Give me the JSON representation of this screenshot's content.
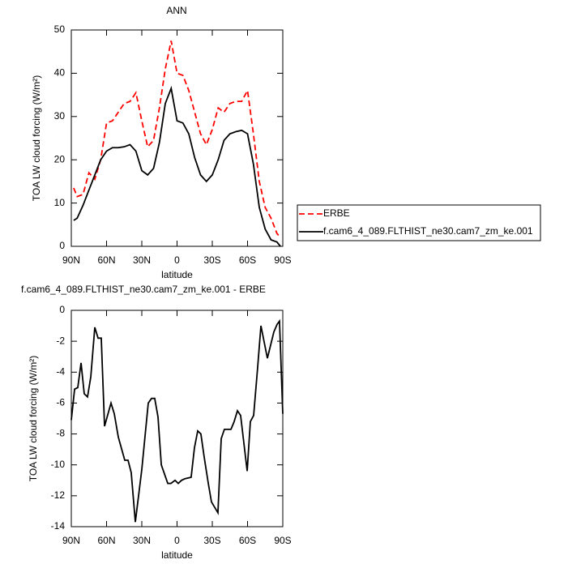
{
  "chart_data": [
    {
      "type": "line",
      "title": "ANN",
      "xlabel": "latitude",
      "ylabel": "TOA LW cloud forcing (W/m²)",
      "x": [
        88,
        85,
        80,
        75,
        70,
        65,
        60,
        55,
        50,
        45,
        40,
        35,
        30,
        25,
        20,
        15,
        10,
        5,
        0,
        -5,
        -10,
        -15,
        -20,
        -25,
        -30,
        -35,
        -40,
        -45,
        -50,
        -55,
        -60,
        -65,
        -70,
        -75,
        -80,
        -85,
        -88
      ],
      "series": [
        {
          "name": "ERBE",
          "color": "#ff0000",
          "dashed": true,
          "values": [
            13.5,
            11.5,
            12,
            17,
            15.5,
            20,
            28.5,
            29,
            31,
            33,
            33.5,
            35.5,
            29,
            23,
            24.5,
            32,
            41,
            47.5,
            40,
            39.5,
            36,
            31,
            26,
            23.5,
            27,
            32,
            31,
            33,
            33.5,
            33.5,
            36,
            26,
            15,
            9,
            6.5,
            3,
            2
          ]
        },
        {
          "name": "f.cam6_4_089.FLTHIST_ne30.cam7_zm_ke.001",
          "color": "#000000",
          "dashed": false,
          "values": [
            6,
            6.5,
            9.5,
            13,
            16.5,
            20,
            22,
            22.8,
            22.8,
            23,
            23.5,
            22,
            17.5,
            16.5,
            18,
            24,
            33,
            36.5,
            29,
            28.5,
            26,
            20.5,
            16.5,
            15,
            16.5,
            20,
            24.5,
            26,
            26.5,
            26.8,
            26,
            19,
            9,
            4,
            1.5,
            1,
            0
          ]
        }
      ],
      "xlim": [
        90,
        -90
      ],
      "ylim": [
        0,
        50
      ],
      "xticks": [
        {
          "value": 90,
          "label": "90N"
        },
        {
          "value": 60,
          "label": "60N"
        },
        {
          "value": 30,
          "label": "30N"
        },
        0,
        {
          "value": -30,
          "label": "30S"
        },
        {
          "value": -60,
          "label": "60S"
        },
        {
          "value": -90,
          "label": "90S"
        }
      ],
      "yticks": [
        0,
        10,
        20,
        30,
        40,
        50
      ],
      "legend": "outside right"
    },
    {
      "type": "line",
      "title": "f.cam6_4_089.FLTHIST_ne30.cam7_zm_ke.001 - ERBE",
      "xlabel": "latitude",
      "ylabel": "TOA LW cloud forcing (W/m²)",
      "x": [
        90,
        87.2,
        84.5,
        81.7,
        79,
        76.2,
        73.4,
        70,
        67.2,
        64.5,
        61.7,
        56.2,
        53.4,
        50,
        44.5,
        41.7,
        39,
        35.5,
        30,
        24.5,
        21.7,
        19,
        16.2,
        13.4,
        7.9,
        5.2,
        1.7,
        -1,
        -3.8,
        -6.6,
        -12,
        -14.8,
        -17.6,
        -20.3,
        -23.1,
        -26.6,
        -29.3,
        -34.8,
        -37.6,
        -40.3,
        -45.9,
        -48.6,
        -51.4,
        -54.1,
        -59.7,
        -62.4,
        -65.2,
        -68.6,
        -71.4,
        -76.9,
        -82.4,
        -85.2,
        -87.2,
        -90
      ],
      "color": "#000000",
      "values": [
        -7.1,
        -5.1,
        -5.0,
        -3.4,
        -5.4,
        -5.6,
        -4.3,
        -1.1,
        -1.8,
        -1.8,
        -7.5,
        -6.0,
        -6.7,
        -8.2,
        -9.7,
        -9.7,
        -10.5,
        -13.7,
        -10.3,
        -6.0,
        -5.7,
        -5.7,
        -6.9,
        -10.0,
        -11.2,
        -11.2,
        -11.0,
        -11.2,
        -11.0,
        -10.9,
        -10.8,
        -8.9,
        -7.8,
        -8.0,
        -9.5,
        -11.2,
        -12.4,
        -13.1,
        -8.3,
        -7.7,
        -7.7,
        -7.2,
        -6.5,
        -6.8,
        -10.4,
        -7.2,
        -6.8,
        -3.7,
        -1.0,
        -3.1,
        -1.4,
        -0.9,
        -0.7,
        -6.7
      ],
      "xlim": [
        90,
        -90
      ],
      "ylim": [
        -14,
        0
      ],
      "xticks": [
        {
          "value": 90,
          "label": "90N"
        },
        {
          "value": 60,
          "label": "60N"
        },
        {
          "value": 30,
          "label": "30N"
        },
        0,
        {
          "value": -30,
          "label": "30S"
        },
        {
          "value": -60,
          "label": "60S"
        },
        {
          "value": -90,
          "label": "90S"
        }
      ],
      "yticks": [
        -14,
        -12,
        -10,
        -8,
        -6,
        -4,
        -2,
        0
      ]
    }
  ]
}
